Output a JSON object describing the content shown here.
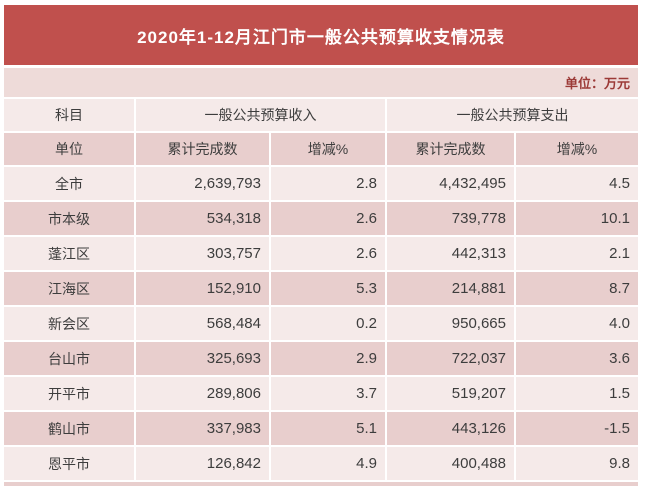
{
  "title": "2020年1-12月江门市一般公共预算收支情况表",
  "unit_note": "单位：万元",
  "colors": {
    "banner_red": "#c0504d",
    "row_light": "#f5eae9",
    "row_dark": "#e8cecd",
    "unit_note_text": "#9c3a37",
    "title_text": "#ffffff",
    "body_text": "#3d3d3d"
  },
  "table": {
    "headers": {
      "subject": "科目",
      "unit": "单位",
      "revenue_group": "一般公共预算收入",
      "expenditure_group": "一般公共预算支出",
      "cumulative_revenue": "累计完成数",
      "change_revenue": "增减%",
      "cumulative_expenditure": "累计完成数",
      "change_expenditure": "增减%"
    },
    "rows": [
      {
        "name": "全市",
        "rev": "2,639,793",
        "rev_chg": "2.8",
        "exp": "4,432,495",
        "exp_chg": "4.5"
      },
      {
        "name": "市本级",
        "rev": "534,318",
        "rev_chg": "2.6",
        "exp": "739,778",
        "exp_chg": "10.1"
      },
      {
        "name": "蓬江区",
        "rev": "303,757",
        "rev_chg": "2.6",
        "exp": "442,313",
        "exp_chg": "2.1"
      },
      {
        "name": "江海区",
        "rev": "152,910",
        "rev_chg": "5.3",
        "exp": "214,881",
        "exp_chg": "8.7"
      },
      {
        "name": "新会区",
        "rev": "568,484",
        "rev_chg": "0.2",
        "exp": "950,665",
        "exp_chg": "4.0"
      },
      {
        "name": "台山市",
        "rev": "325,693",
        "rev_chg": "2.9",
        "exp": "722,037",
        "exp_chg": "3.6"
      },
      {
        "name": "开平市",
        "rev": "289,806",
        "rev_chg": "3.7",
        "exp": "519,207",
        "exp_chg": "1.5"
      },
      {
        "name": "鹤山市",
        "rev": "337,983",
        "rev_chg": "5.1",
        "exp": "443,126",
        "exp_chg": "-1.5"
      },
      {
        "name": "恩平市",
        "rev": "126,842",
        "rev_chg": "4.9",
        "exp": "400,488",
        "exp_chg": "9.8"
      }
    ]
  }
}
